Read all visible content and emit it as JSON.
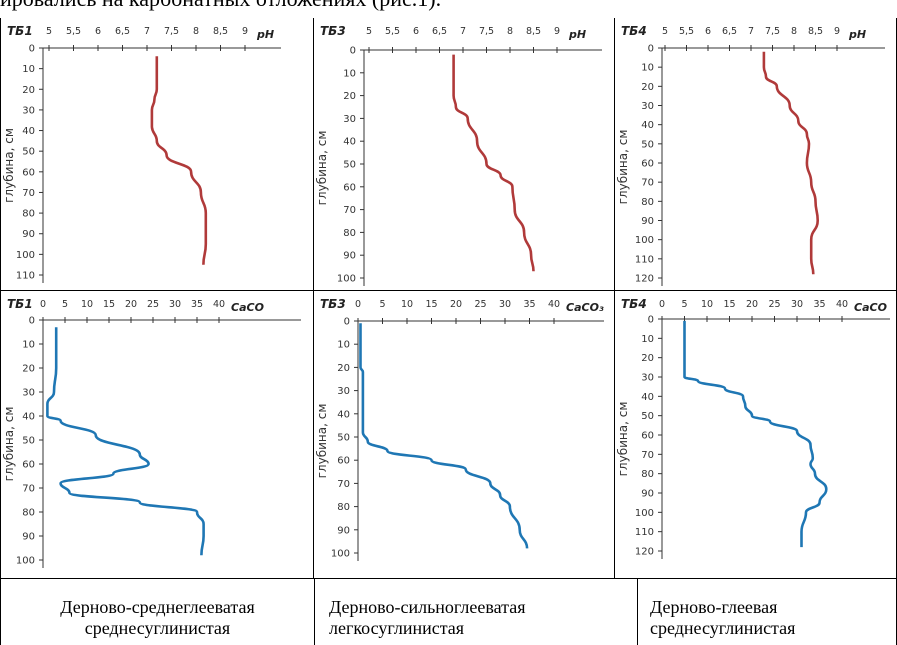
{
  "caption": "ировались на карбонатных отложениях (рис.1).",
  "chart_data": [
    {
      "type": "line",
      "panel_label": "ТБ1",
      "xlabel": "pH",
      "ylabel": "глубина, см",
      "x_ticks": [
        "5",
        "5,5",
        "6",
        "6,5",
        "7",
        "7,5",
        "8",
        "8,5",
        "9"
      ],
      "xlim": [
        5,
        9
      ],
      "y_ticks": [
        0,
        10,
        20,
        30,
        40,
        50,
        60,
        70,
        80,
        90,
        100,
        110
      ],
      "ylim": [
        0,
        110
      ],
      "color": "#b03a3a",
      "series": [
        {
          "x": [
            7.2,
            7.2,
            7.2,
            7.15,
            7.1,
            7.1,
            7.2,
            7.4,
            7.9,
            8.1,
            8.2,
            8.2,
            8.15
          ],
          "y": [
            4,
            10,
            20,
            25,
            30,
            38,
            45,
            52,
            60,
            70,
            80,
            95,
            105
          ]
        }
      ]
    },
    {
      "type": "line",
      "panel_label": "ТБ3",
      "xlabel": "pH",
      "ylabel": "глубина, см",
      "x_ticks": [
        "5",
        "5,5",
        "6",
        "6,5",
        "7",
        "7,5",
        "8",
        "8,5",
        "9"
      ],
      "xlim": [
        5,
        9
      ],
      "y_ticks": [
        0,
        10,
        20,
        30,
        40,
        50,
        60,
        70,
        80,
        90,
        100
      ],
      "ylim": [
        0,
        100
      ],
      "color": "#b03a3a",
      "series": [
        {
          "x": [
            6.8,
            6.8,
            6.8,
            6.85,
            7.1,
            7.3,
            7.5,
            7.8,
            8.05,
            8.1,
            8.3,
            8.45,
            8.5
          ],
          "y": [
            2,
            10,
            20,
            25,
            30,
            40,
            50,
            55,
            60,
            70,
            80,
            90,
            97
          ]
        }
      ]
    },
    {
      "type": "line",
      "panel_label": "ТБ4",
      "xlabel": "pH",
      "ylabel": "глубина, см",
      "x_ticks": [
        "5",
        "5,5",
        "6",
        "6,5",
        "7",
        "7,5",
        "8",
        "8,5",
        "9"
      ],
      "xlim": [
        5,
        9
      ],
      "y_ticks": [
        0,
        10,
        20,
        30,
        40,
        50,
        60,
        70,
        80,
        90,
        100,
        110,
        120
      ],
      "ylim": [
        0,
        120
      ],
      "color": "#b03a3a",
      "series": [
        {
          "x": [
            7.3,
            7.3,
            7.35,
            7.6,
            7.9,
            8.1,
            8.3,
            8.35,
            8.3,
            8.4,
            8.5,
            8.55,
            8.4,
            8.4,
            8.45
          ],
          "y": [
            2,
            10,
            15,
            20,
            30,
            38,
            45,
            50,
            60,
            70,
            80,
            90,
            100,
            110,
            118
          ]
        }
      ]
    },
    {
      "type": "line",
      "panel_label": "ТБ1",
      "xlabel": "CaCO",
      "ylabel": "глубина, см",
      "x_ticks": [
        "0",
        "5",
        "10",
        "15",
        "20",
        "25",
        "30",
        "35",
        "40"
      ],
      "xlim": [
        0,
        40
      ],
      "y_ticks": [
        0,
        10,
        20,
        30,
        40,
        50,
        60,
        70,
        80,
        90,
        100
      ],
      "ylim": [
        0,
        100
      ],
      "color": "#1f77b4",
      "series": [
        {
          "x": [
            3,
            3,
            3,
            2.5,
            1,
            1,
            4,
            12,
            22,
            24,
            16,
            4,
            6,
            22,
            35,
            36.5,
            36.5,
            36
          ],
          "y": [
            3,
            10,
            20,
            30,
            35,
            40,
            42,
            48,
            56,
            60,
            64,
            68,
            72,
            76,
            80,
            85,
            90,
            98
          ]
        }
      ]
    },
    {
      "type": "line",
      "panel_label": "ТБ3",
      "xlabel": "CaCO₃",
      "ylabel": "глубина, см",
      "x_ticks": [
        "0",
        "5",
        "10",
        "15",
        "20",
        "25",
        "30",
        "35",
        "40"
      ],
      "xlim": [
        0,
        40
      ],
      "y_ticks": [
        0,
        10,
        20,
        30,
        40,
        50,
        60,
        70,
        80,
        90,
        100
      ],
      "ylim": [
        0,
        100
      ],
      "color": "#1f77b4",
      "series": [
        {
          "x": [
            0.5,
            0.5,
            0.5,
            1,
            1,
            1,
            1,
            1,
            1,
            2,
            6,
            15,
            22,
            27,
            29,
            31,
            33,
            34.5
          ],
          "y": [
            1,
            10,
            20,
            22,
            30,
            35,
            40,
            45,
            48,
            52,
            56,
            60,
            64,
            70,
            75,
            80,
            90,
            98
          ]
        }
      ]
    },
    {
      "type": "line",
      "panel_label": "ТБ4",
      "xlabel": "CaCO",
      "ylabel": "глубина, см",
      "x_ticks": [
        "0",
        "5",
        "10",
        "15",
        "20",
        "25",
        "30",
        "35",
        "40"
      ],
      "xlim": [
        0,
        40
      ],
      "y_ticks": [
        0,
        10,
        20,
        30,
        40,
        50,
        60,
        70,
        80,
        90,
        100,
        110,
        120
      ],
      "ylim": [
        0,
        120
      ],
      "color": "#1f77b4",
      "series": [
        {
          "x": [
            5,
            5,
            5,
            5,
            5,
            5,
            8,
            14,
            18,
            18.5,
            20,
            24,
            30,
            33,
            33.5,
            33,
            34,
            36.5,
            35,
            32,
            31,
            31
          ],
          "y": [
            1,
            10,
            20,
            25,
            28,
            30,
            32,
            36,
            40,
            45,
            50,
            53,
            58,
            65,
            72,
            75,
            80,
            88,
            95,
            100,
            110,
            118
          ]
        }
      ]
    }
  ],
  "soil_types": [
    {
      "line1": "Дерново-среднеглееватая",
      "line2": "среднесуглинистая"
    },
    {
      "line1": "Дерново-сильноглееватая",
      "line2": "легкосуглинистая"
    },
    {
      "line1": "Дерново-глеевая",
      "line2": "среднесуглинистая"
    }
  ]
}
